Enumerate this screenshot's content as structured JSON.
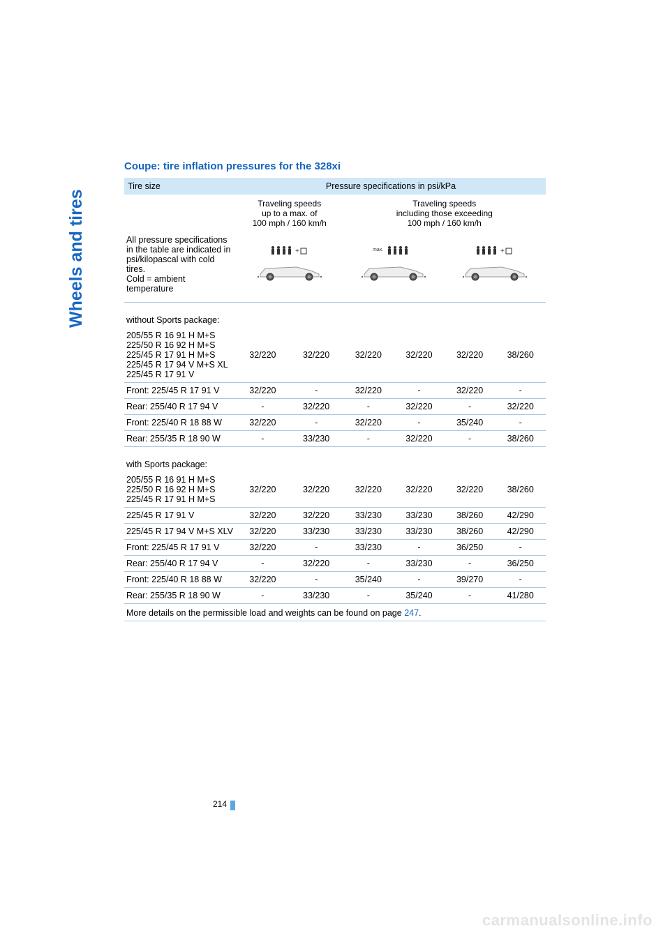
{
  "side_label": "Wheels and tires",
  "title": "Coupe: tire inflation pressures for the 328xi",
  "header": {
    "tire_size": "Tire size",
    "pressure_spec": "Pressure specifications in psi/kPa",
    "speed_low": "Traveling speeds\nup to a max. of\n100 mph / 160 km/h",
    "speed_high": "Traveling speeds\nincluding those exceeding\n100 mph / 160 km/h",
    "note": "All pressure specifications in the table are indicated in psi/kilopascal with cold tires.\nCold = ambient temperature"
  },
  "sections": {
    "without": "without Sports package:",
    "with": "with Sports package:"
  },
  "rows_without": [
    {
      "tire": "205/55 R 16 91 H M+S\n225/50 R 16 92 H M+S\n225/45 R 17 91 H M+S\n225/45 R 17 94 V M+S XL\n225/45 R 17 91 V",
      "v": [
        "32/220",
        "32/220",
        "32/220",
        "32/220",
        "32/220",
        "38/260"
      ]
    },
    {
      "tire": "Front: 225/45 R 17 91 V",
      "v": [
        "32/220",
        "-",
        "32/220",
        "-",
        "32/220",
        "-"
      ]
    },
    {
      "tire": "Rear: 255/40 R 17 94 V",
      "v": [
        "-",
        "32/220",
        "-",
        "32/220",
        "-",
        "32/220"
      ]
    },
    {
      "tire": "Front: 225/40 R 18 88 W",
      "v": [
        "32/220",
        "-",
        "32/220",
        "-",
        "35/240",
        "-"
      ]
    },
    {
      "tire": "Rear: 255/35 R 18 90 W",
      "v": [
        "-",
        "33/230",
        "-",
        "32/220",
        "-",
        "38/260"
      ]
    }
  ],
  "rows_with": [
    {
      "tire": "205/55 R 16 91 H M+S\n225/50 R 16 92 H M+S\n225/45 R 17 91 H M+S",
      "v": [
        "32/220",
        "32/220",
        "32/220",
        "32/220",
        "32/220",
        "38/260"
      ]
    },
    {
      "tire": "225/45 R 17 91 V",
      "v": [
        "32/220",
        "32/220",
        "33/230",
        "33/230",
        "38/260",
        "42/290"
      ]
    },
    {
      "tire": "225/45 R 17 94 V M+S XLV",
      "v": [
        "32/220",
        "33/230",
        "33/230",
        "33/230",
        "38/260",
        "42/290"
      ]
    },
    {
      "tire": "Front: 225/45 R 17 91 V",
      "v": [
        "32/220",
        "-",
        "33/230",
        "-",
        "36/250",
        "-"
      ]
    },
    {
      "tire": "Rear: 255/40 R 17 94 V",
      "v": [
        "-",
        "32/220",
        "-",
        "33/230",
        "-",
        "36/250"
      ]
    },
    {
      "tire": "Front: 225/40 R 18 88 W",
      "v": [
        "32/220",
        "-",
        "35/240",
        "-",
        "39/270",
        "-"
      ]
    },
    {
      "tire": "Rear: 255/35 R 18 90 W",
      "v": [
        "-",
        "33/230",
        "-",
        "35/240",
        "-",
        "41/280"
      ]
    }
  ],
  "footnote": {
    "text": "More details on the permissible load and weights can be found on page ",
    "link": "247",
    "suffix": "."
  },
  "page_number": "214",
  "watermark": "carmanualsonline.info",
  "colors": {
    "accent": "#1565c0",
    "header_bg": "#d0e7f7",
    "divider": "#aac8e0",
    "marker": "#5ba8dd",
    "watermark": "#e4e4e4"
  }
}
